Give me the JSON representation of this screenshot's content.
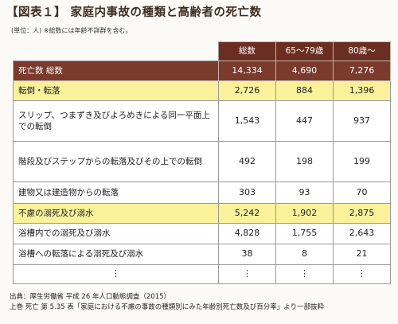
{
  "title": "【図表１】 家庭内事故の種類と高齢者の死亡数",
  "unit_note": "(単位：人) ※総数には年齢不詳群を含む。",
  "columns": [
    "総数",
    "65～79歳",
    "80歳～"
  ],
  "rows": [
    {
      "label": "死亡数 総数",
      "values": [
        "14,334",
        "4,690",
        "7,276"
      ],
      "style": "total"
    },
    {
      "label": "転倒・転落",
      "values": [
        "2,726",
        "884",
        "1,396"
      ],
      "style": "hl"
    },
    {
      "label": "スリップ、つまずき及びよろめきによる同一平面上での転倒",
      "values": [
        "1,543",
        "447",
        "937"
      ],
      "style": "plain"
    },
    {
      "label": "階段及びステップからの転落及びその上での転倒",
      "values": [
        "492",
        "198",
        "199"
      ],
      "style": "plain"
    },
    {
      "label": "建物又は建造物からの転落",
      "values": [
        "303",
        "93",
        "70"
      ],
      "style": "plain"
    },
    {
      "label": "不慮の溺死及び溺水",
      "values": [
        "5,242",
        "1,902",
        "2,875"
      ],
      "style": "hl"
    },
    {
      "label": "浴槽内での溺死及び溺水",
      "values": [
        "4,828",
        "1,755",
        "2,643"
      ],
      "style": "plain"
    },
    {
      "label": "浴槽への転落による溺死及び溺水",
      "values": [
        "38",
        "8",
        "21"
      ],
      "style": "plain"
    }
  ],
  "ellipsis": "⋮",
  "source_line1": "出典：厚生労働省 平成 26 年人口動態調査（2015）",
  "source_line2": "上巻 死亡 第 5.35 表「家庭における不慮の事故の種類別にみた年齢別死亡数及び百分率」より一部抜粋"
}
